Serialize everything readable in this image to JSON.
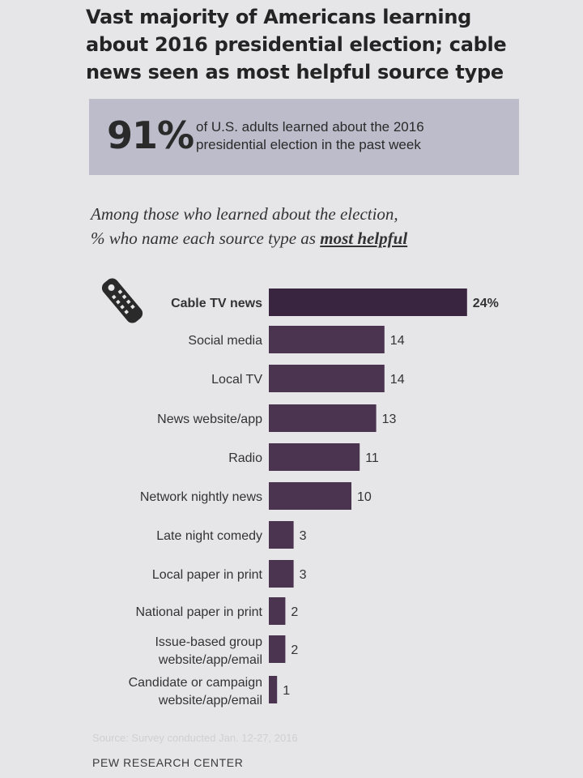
{
  "header": {
    "title": "Vast majority of Americans learning about 2016 presidential election; cable news seen as most helpful source type"
  },
  "stat": {
    "value": "91%",
    "text": "of U.S. adults learned about the 2016 presidential election in the past week"
  },
  "subtitle": {
    "line1": "Among those who learned about the election,",
    "line2_pre": "% who name each source type as ",
    "line2_emph": "most helpful"
  },
  "chart_data": {
    "type": "bar",
    "orientation": "horizontal",
    "categories": [
      "Cable TV news",
      "Social media",
      "Local TV",
      "News website/app",
      "Radio",
      "Network nightly news",
      "Late night comedy",
      "Local paper in print",
      "National paper in print",
      "Issue-based group website/app/email",
      "Candidate or campaign website/app/email"
    ],
    "values": [
      24,
      14,
      14,
      13,
      11,
      10,
      3,
      3,
      2,
      2,
      1
    ],
    "value_labels": [
      "24%",
      "14",
      "14",
      "13",
      "11",
      "10",
      "3",
      "3",
      "2",
      "2",
      "1"
    ],
    "bar_color": "#4a3450",
    "highlight_first": true,
    "grid": false,
    "legend": "none"
  },
  "icons": {
    "chart_icon": "tv-remote-icon"
  },
  "footer": {
    "source": "Source: Survey conducted Jan. 12-27, 2016",
    "org": "PEW RESEARCH CENTER"
  }
}
